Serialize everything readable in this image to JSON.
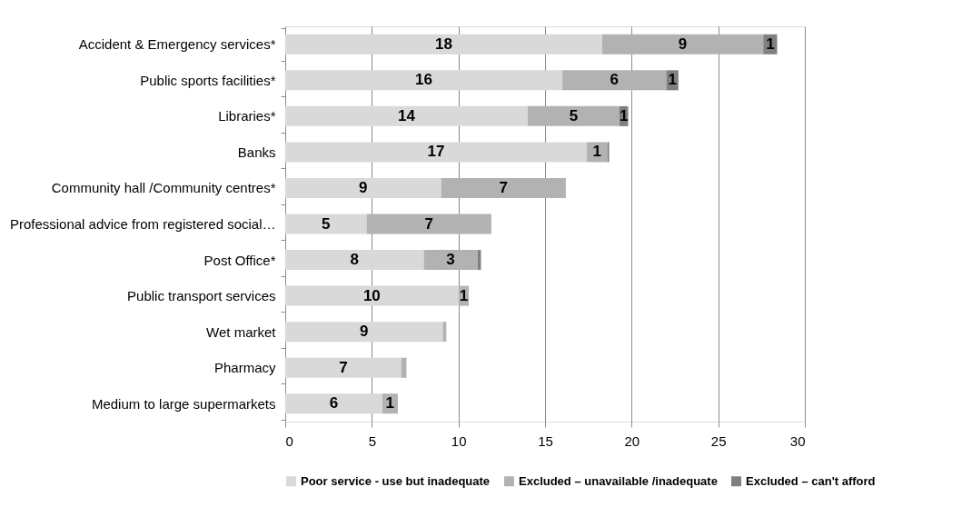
{
  "chart_data": {
    "type": "bar",
    "orientation": "horizontal",
    "stacked": true,
    "categories": [
      "Accident & Emergency services*",
      "Public sports facilities*",
      "Libraries*",
      "Banks",
      "Community hall /Community centres*",
      "Professional advice from registered social…",
      "Post Office*",
      "Public transport services",
      "Wet market",
      "Pharmacy",
      "Medium to large supermarkets"
    ],
    "series": [
      {
        "name": "Poor service - use but inadequate",
        "color": "#d9d9d9",
        "values": [
          18.3,
          16.0,
          14.0,
          17.4,
          9.0,
          4.7,
          8.0,
          10.0,
          9.1,
          6.7,
          5.6
        ],
        "value_labels": [
          "18",
          "16",
          "14",
          "17",
          "9",
          "5",
          "8",
          "10",
          "9",
          "7",
          "6"
        ]
      },
      {
        "name": "Excluded – unavailable /inadequate",
        "color": "#b2b2b2",
        "values": [
          9.3,
          6.0,
          5.3,
          1.2,
          7.2,
          7.2,
          3.1,
          0.6,
          0.2,
          0.3,
          0.9
        ],
        "value_labels": [
          "9",
          "6",
          "5",
          "1",
          "7",
          "7",
          "3",
          "1",
          null,
          null,
          "1"
        ]
      },
      {
        "name": "Excluded – can't afford",
        "color": "#808080",
        "values": [
          0.8,
          0.7,
          0.5,
          0.1,
          0,
          0,
          0.2,
          0,
          0,
          0,
          0
        ],
        "value_labels": [
          "1",
          "1",
          "1",
          null,
          null,
          null,
          null,
          null,
          null,
          null,
          null
        ]
      }
    ],
    "xlim": [
      0,
      30
    ],
    "xticks": [
      0,
      5,
      10,
      15,
      20,
      25,
      30
    ],
    "grid": "x",
    "legend": "bottom"
  }
}
